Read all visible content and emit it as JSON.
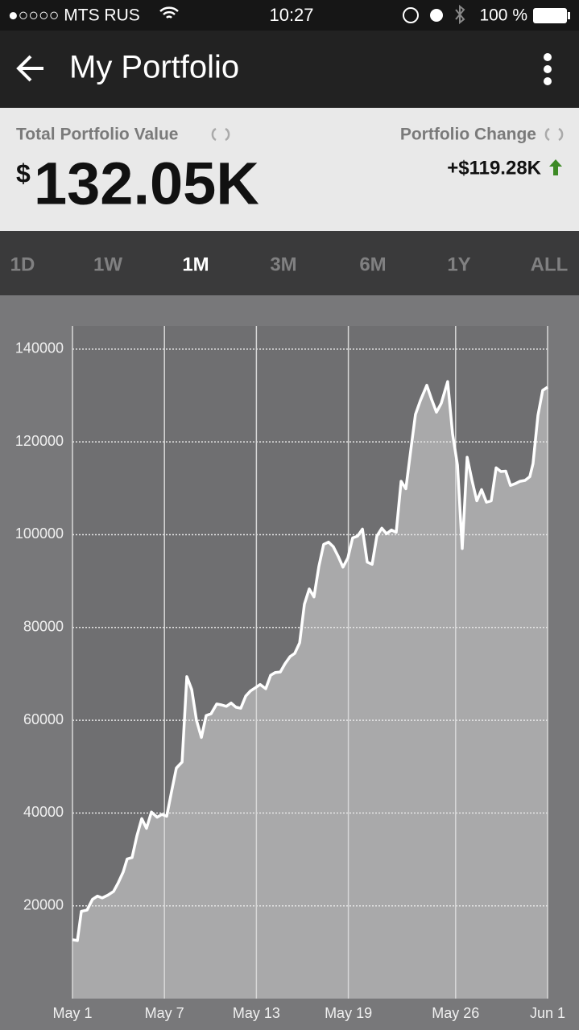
{
  "status_bar": {
    "carrier": "●○○○○ MTS RUS",
    "time": "10:27",
    "battery": "100 %"
  },
  "header": {
    "title": "My Portfolio"
  },
  "summary": {
    "total_label": "Total Portfolio Value",
    "currency": "$",
    "total_value": "132.05K",
    "change_label": "Portfolio Change",
    "change_value": "+$119.28K"
  },
  "tabs": {
    "items": [
      "1D",
      "1W",
      "1M",
      "3M",
      "6M",
      "1Y",
      "ALL"
    ],
    "selected": 2
  },
  "chart_data": {
    "type": "area",
    "x": [
      1.0,
      1.32,
      1.58,
      1.95,
      2.31,
      2.63,
      2.94,
      3.31,
      3.68,
      3.99,
      4.31,
      4.57,
      4.89,
      5.2,
      5.52,
      5.83,
      6.15,
      6.52,
      6.83,
      7.15,
      7.46,
      7.78,
      8.15,
      8.46,
      8.78,
      9.09,
      9.41,
      9.72,
      10.04,
      10.41,
      10.72,
      11.04,
      11.35,
      11.67,
      11.98,
      12.3,
      12.61,
      12.93,
      13.24,
      13.61,
      13.93,
      14.24,
      14.56,
      14.87,
      15.19,
      15.5,
      15.82,
      16.13,
      16.45,
      16.76,
      17.08,
      17.39,
      17.71,
      18.02,
      18.34,
      18.65,
      18.97,
      19.28,
      19.6,
      19.92,
      20.23,
      20.55,
      20.86,
      21.18,
      21.49,
      21.81,
      22.12,
      22.44,
      22.75,
      23.07,
      23.38,
      23.7,
      24.12,
      24.43,
      24.75,
      25.06,
      25.48,
      25.8,
      26.12,
      26.43,
      26.75,
      27.06,
      27.38,
      27.69,
      28.01,
      28.32,
      28.64,
      28.95,
      29.27,
      29.58,
      29.9,
      30.21,
      30.53,
      30.84,
      31.05,
      31.37,
      31.68,
      32.0
    ],
    "values": [
      12700,
      12500,
      18800,
      19100,
      21400,
      22100,
      21700,
      22300,
      23100,
      25000,
      27300,
      30100,
      30400,
      35000,
      38800,
      36700,
      40200,
      39100,
      39700,
      39300,
      44500,
      49700,
      51000,
      69400,
      66600,
      60000,
      56300,
      61000,
      61400,
      63500,
      63300,
      63000,
      63700,
      62800,
      62600,
      65200,
      66300,
      67000,
      67700,
      66800,
      69700,
      70300,
      70400,
      72200,
      73700,
      74400,
      76700,
      85000,
      88300,
      86600,
      93200,
      97900,
      98400,
      97400,
      95300,
      93000,
      95000,
      99300,
      99700,
      101200,
      94100,
      93600,
      99700,
      101400,
      100200,
      101000,
      100500,
      111500,
      109900,
      118100,
      125900,
      128900,
      132200,
      129200,
      126400,
      128300,
      133000,
      121700,
      115000,
      97000,
      116700,
      111800,
      107300,
      109700,
      107000,
      107300,
      114400,
      113600,
      113700,
      110600,
      111000,
      111500,
      111700,
      112500,
      115300,
      125700,
      131100,
      131800
    ],
    "color": "#ffffff",
    "fill_color": "#a9a9aa",
    "xlim": [
      1,
      32
    ],
    "xticks": [
      {
        "value": 1,
        "label": "May 1"
      },
      {
        "value": 7,
        "label": "May 7"
      },
      {
        "value": 13,
        "label": "May 13"
      },
      {
        "value": 19,
        "label": "May 19"
      },
      {
        "value": 26,
        "label": "May 26"
      },
      {
        "value": 32,
        "label": "Jun 1"
      }
    ],
    "ylim": [
      0,
      145000
    ],
    "yticks": [
      20000,
      40000,
      60000,
      80000,
      100000,
      120000,
      140000
    ],
    "grid": true
  }
}
